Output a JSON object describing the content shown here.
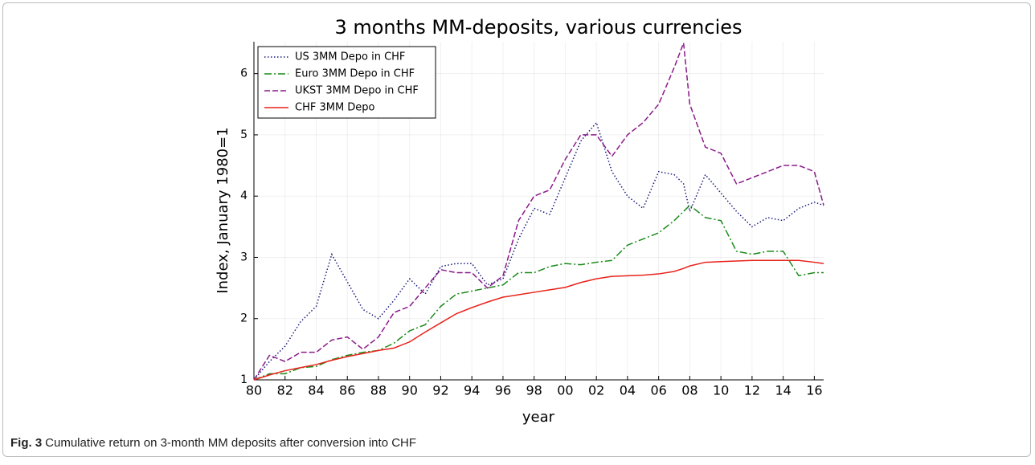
{
  "chart_data": {
    "type": "line",
    "title": "3 months MM-deposits, various currencies",
    "xlabel": "year",
    "ylabel": "Index, January 1980=1",
    "x": [
      1980,
      1981,
      1982,
      1983,
      1984,
      1985,
      1986,
      1987,
      1988,
      1989,
      1990,
      1991,
      1992,
      1993,
      1994,
      1995,
      1996,
      1997,
      1998,
      1999,
      2000,
      2001,
      2002,
      2003,
      2004,
      2005,
      2006,
      2007,
      2007.6,
      2008,
      2009,
      2010,
      2011,
      2012,
      2013,
      2014,
      2015,
      2016,
      2016.6
    ],
    "series": [
      {
        "name": "US 3MM Depo in CHF",
        "color": "#1a1a7a",
        "style": "dotted",
        "values": [
          1.0,
          1.3,
          1.55,
          1.95,
          2.2,
          3.05,
          2.6,
          2.15,
          2.0,
          2.3,
          2.65,
          2.4,
          2.85,
          2.9,
          2.9,
          2.55,
          2.65,
          3.3,
          3.8,
          3.7,
          4.3,
          4.9,
          5.2,
          4.4,
          4.0,
          3.8,
          4.4,
          4.35,
          4.2,
          3.75,
          4.35,
          4.05,
          3.75,
          3.5,
          3.65,
          3.6,
          3.8,
          3.9,
          3.85
        ]
      },
      {
        "name": "Euro 3MM Depo in CHF",
        "color": "#1a8a1a",
        "style": "dashdot",
        "values": [
          1.0,
          1.1,
          1.1,
          1.2,
          1.22,
          1.33,
          1.4,
          1.45,
          1.48,
          1.6,
          1.8,
          1.9,
          2.2,
          2.4,
          2.45,
          2.5,
          2.55,
          2.75,
          2.75,
          2.85,
          2.9,
          2.88,
          2.92,
          2.95,
          3.2,
          3.3,
          3.4,
          3.6,
          3.75,
          3.85,
          3.65,
          3.6,
          3.1,
          3.05,
          3.1,
          3.1,
          2.7,
          2.75,
          2.75
        ]
      },
      {
        "name": "UKST 3MM Depo in CHF",
        "color": "#8a1a8a",
        "style": "dashed",
        "values": [
          1.0,
          1.4,
          1.3,
          1.45,
          1.45,
          1.65,
          1.7,
          1.5,
          1.7,
          2.1,
          2.2,
          2.5,
          2.8,
          2.75,
          2.75,
          2.5,
          2.7,
          3.6,
          4.0,
          4.1,
          4.6,
          5.0,
          5.0,
          4.65,
          5.0,
          5.2,
          5.5,
          6.1,
          6.5,
          5.5,
          4.8,
          4.7,
          4.2,
          4.3,
          4.4,
          4.5,
          4.5,
          4.4,
          3.85
        ]
      },
      {
        "name": "CHF 3MM Depo",
        "color": "#e8221a",
        "style": "solid",
        "values": [
          1.0,
          1.08,
          1.15,
          1.2,
          1.25,
          1.32,
          1.38,
          1.43,
          1.48,
          1.52,
          1.62,
          1.78,
          1.93,
          2.08,
          2.18,
          2.27,
          2.35,
          2.39,
          2.43,
          2.47,
          2.51,
          2.59,
          2.65,
          2.69,
          2.7,
          2.71,
          2.73,
          2.77,
          2.82,
          2.86,
          2.92,
          2.93,
          2.94,
          2.95,
          2.95,
          2.95,
          2.95,
          2.92,
          2.9
        ]
      }
    ],
    "xlim": [
      1980,
      2016.6
    ],
    "ylim": [
      1,
      6.52
    ],
    "xticks": [
      {
        "value": 1980,
        "label": "80"
      },
      {
        "value": 1982,
        "label": "82"
      },
      {
        "value": 1984,
        "label": "84"
      },
      {
        "value": 1986,
        "label": "86"
      },
      {
        "value": 1988,
        "label": "88"
      },
      {
        "value": 1990,
        "label": "90"
      },
      {
        "value": 1992,
        "label": "92"
      },
      {
        "value": 1994,
        "label": "94"
      },
      {
        "value": 1996,
        "label": "96"
      },
      {
        "value": 1998,
        "label": "98"
      },
      {
        "value": 2000,
        "label": "00"
      },
      {
        "value": 2002,
        "label": "02"
      },
      {
        "value": 2004,
        "label": "04"
      },
      {
        "value": 2006,
        "label": "06"
      },
      {
        "value": 2008,
        "label": "08"
      },
      {
        "value": 2010,
        "label": "10"
      },
      {
        "value": 2012,
        "label": "12"
      },
      {
        "value": 2014,
        "label": "14"
      },
      {
        "value": 2016,
        "label": "16"
      }
    ],
    "yticks": [
      1,
      2,
      3,
      4,
      5,
      6
    ],
    "grid": true,
    "legend": "upper left"
  },
  "caption": {
    "label": "Fig. 3",
    "text": "Cumulative return on 3-month MM deposits after conversion into CHF"
  }
}
